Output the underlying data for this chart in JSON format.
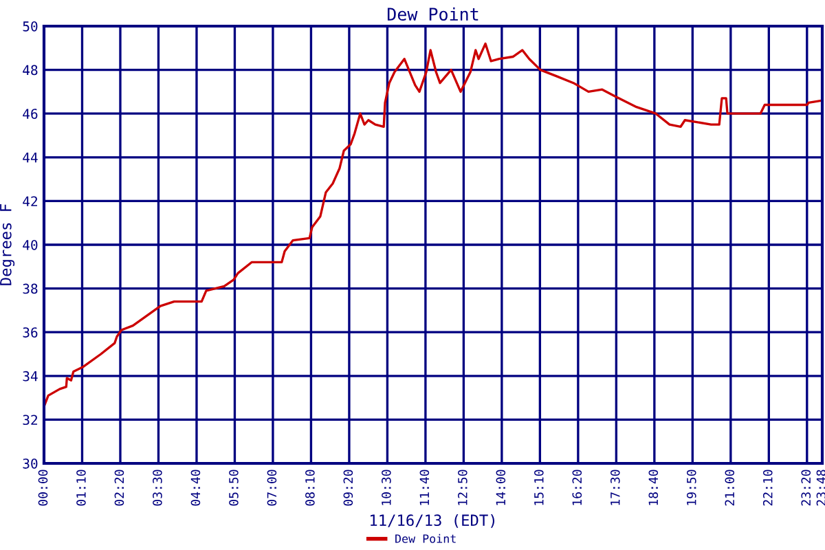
{
  "chart_data": {
    "type": "line",
    "title": "Dew Point",
    "xlabel": "11/16/13 (EDT)",
    "ylabel": "Degrees F",
    "x": [
      0,
      0.13,
      0.48,
      0.68,
      0.7,
      0.83,
      0.9,
      1.18,
      1.74,
      2.16,
      2.23,
      2.37,
      2.72,
      3.28,
      3.56,
      3.98,
      4.82,
      4.96,
      5.51,
      5.8,
      5.93,
      6.35,
      7.27,
      7.36,
      7.61,
      8.12,
      8.2,
      8.45,
      8.62,
      8.83,
      9.04,
      9.17,
      9.38,
      9.5,
      9.67,
      9.8,
      9.92,
      10.13,
      10.39,
      10.43,
      10.56,
      10.72,
      11.02,
      11.35,
      11.48,
      11.69,
      11.82,
      11.99,
      12.11,
      12.45,
      12.74,
      13.04,
      13.2,
      13.29,
      13.5,
      13.67,
      13.92,
      14.34,
      14.63,
      14.84,
      15.18,
      15.69,
      16.19,
      16.65,
      17.07,
      17.45,
      18.12,
      18.71,
      19.13,
      19.47,
      19.6,
      20.4,
      20.65,
      20.73,
      20.86,
      20.9,
      21.91,
      22.04,
      23.34,
      23.38,
      23.8
    ],
    "series": [
      {
        "name": "Dew Point",
        "color": "#cc0000",
        "values": [
          32.6,
          33.1,
          33.4,
          33.5,
          33.9,
          33.8,
          34.2,
          34.4,
          35.0,
          35.5,
          35.8,
          36.1,
          36.3,
          36.9,
          37.2,
          37.4,
          37.4,
          37.9,
          38.1,
          38.4,
          38.7,
          39.2,
          39.2,
          39.7,
          40.2,
          40.3,
          40.8,
          41.3,
          42.4,
          42.8,
          43.5,
          44.3,
          44.6,
          45.1,
          46.0,
          45.5,
          45.7,
          45.5,
          45.4,
          46.5,
          47.4,
          47.9,
          48.5,
          47.3,
          47.0,
          47.9,
          48.9,
          47.9,
          47.4,
          48.0,
          47.0,
          47.9,
          48.9,
          48.5,
          49.2,
          48.4,
          48.5,
          48.6,
          48.9,
          48.5,
          48.0,
          47.7,
          47.4,
          47.0,
          47.1,
          46.8,
          46.3,
          46.0,
          45.5,
          45.4,
          45.7,
          45.5,
          45.5,
          46.7,
          46.7,
          46.0,
          46.0,
          46.4,
          46.4,
          46.5,
          46.6
        ]
      }
    ],
    "xlim": [
      0,
      23.8
    ],
    "ylim": [
      30,
      50
    ],
    "xticks": [
      {
        "value": 0,
        "label": "00:00"
      },
      {
        "value": 1.1667,
        "label": "01:10"
      },
      {
        "value": 2.3333,
        "label": "02:20"
      },
      {
        "value": 3.5,
        "label": "03:30"
      },
      {
        "value": 4.6667,
        "label": "04:40"
      },
      {
        "value": 5.8333,
        "label": "05:50"
      },
      {
        "value": 7,
        "label": "07:00"
      },
      {
        "value": 8.1667,
        "label": "08:10"
      },
      {
        "value": 9.3333,
        "label": "09:20"
      },
      {
        "value": 10.5,
        "label": "10:30"
      },
      {
        "value": 11.6667,
        "label": "11:40"
      },
      {
        "value": 12.8333,
        "label": "12:50"
      },
      {
        "value": 14,
        "label": "14:00"
      },
      {
        "value": 15.1667,
        "label": "15:10"
      },
      {
        "value": 16.3333,
        "label": "16:20"
      },
      {
        "value": 17.5,
        "label": "17:30"
      },
      {
        "value": 18.6667,
        "label": "18:40"
      },
      {
        "value": 19.8333,
        "label": "19:50"
      },
      {
        "value": 21,
        "label": "21:00"
      },
      {
        "value": 22.1667,
        "label": "22:10"
      },
      {
        "value": 23.3333,
        "label": "23:20"
      },
      {
        "value": 23.8,
        "label": "23:48"
      }
    ],
    "yticks": [
      30,
      32,
      34,
      36,
      38,
      40,
      42,
      44,
      46,
      48,
      50
    ],
    "grid": true,
    "legend": "bottom",
    "marker": "none",
    "line_style": "solid"
  }
}
